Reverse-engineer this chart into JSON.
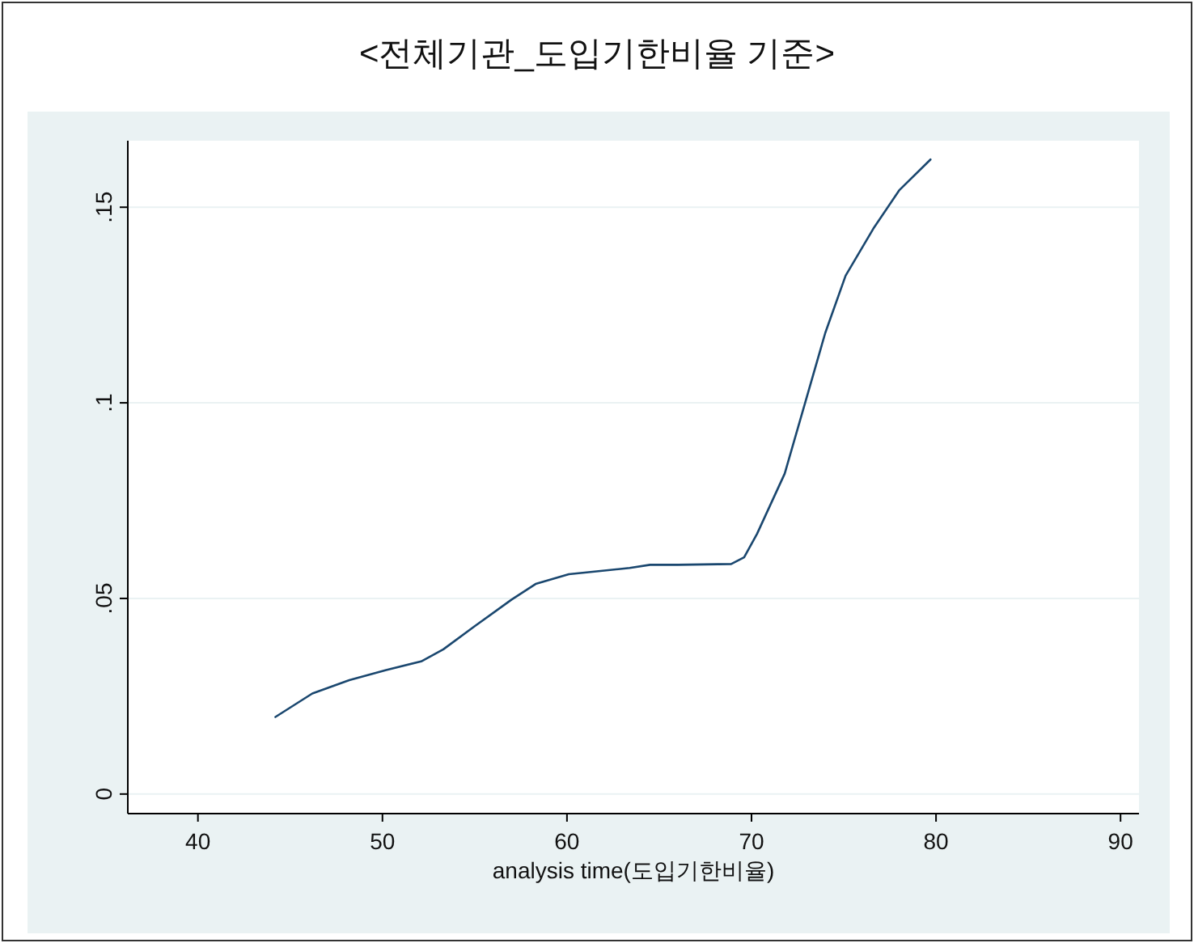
{
  "chart_data": {
    "type": "line",
    "title": "<전체기관_도입기한비율 기준>",
    "xlabel": "analysis time(도입기한비율)",
    "x": [
      44.2,
      46.2,
      48.2,
      50.2,
      52.1,
      53.3,
      55.0,
      57.0,
      58.3,
      60.1,
      61.6,
      63.4,
      64.5,
      66.0,
      68.9,
      69.6,
      70.3,
      71.8,
      72.9,
      74.0,
      75.1,
      76.6,
      78.0,
      79.7
    ],
    "series": [
      {
        "color": "#1a476f",
        "values": [
          0.0197,
          0.0257,
          0.0291,
          0.0317,
          0.0339,
          0.037,
          0.0429,
          0.0497,
          0.0537,
          0.0562,
          0.0569,
          0.0578,
          0.0586,
          0.0586,
          0.0588,
          0.0605,
          0.0665,
          0.0819,
          0.0999,
          0.1179,
          0.1325,
          0.1445,
          0.1543,
          0.1622
        ]
      }
    ],
    "xlim": [
      36.2,
      91.0
    ],
    "ylim": [
      -0.005,
      0.167
    ],
    "xticks": [
      40,
      50,
      60,
      70,
      80,
      90
    ],
    "yticks": [
      {
        "value": 0,
        "label": "0"
      },
      {
        "value": 0.05,
        "label": ".05"
      },
      {
        "value": 0.1,
        "label": ".1"
      },
      {
        "value": 0.15,
        "label": ".15"
      }
    ],
    "grid": "y",
    "marker": "none",
    "line_style": "solid"
  }
}
